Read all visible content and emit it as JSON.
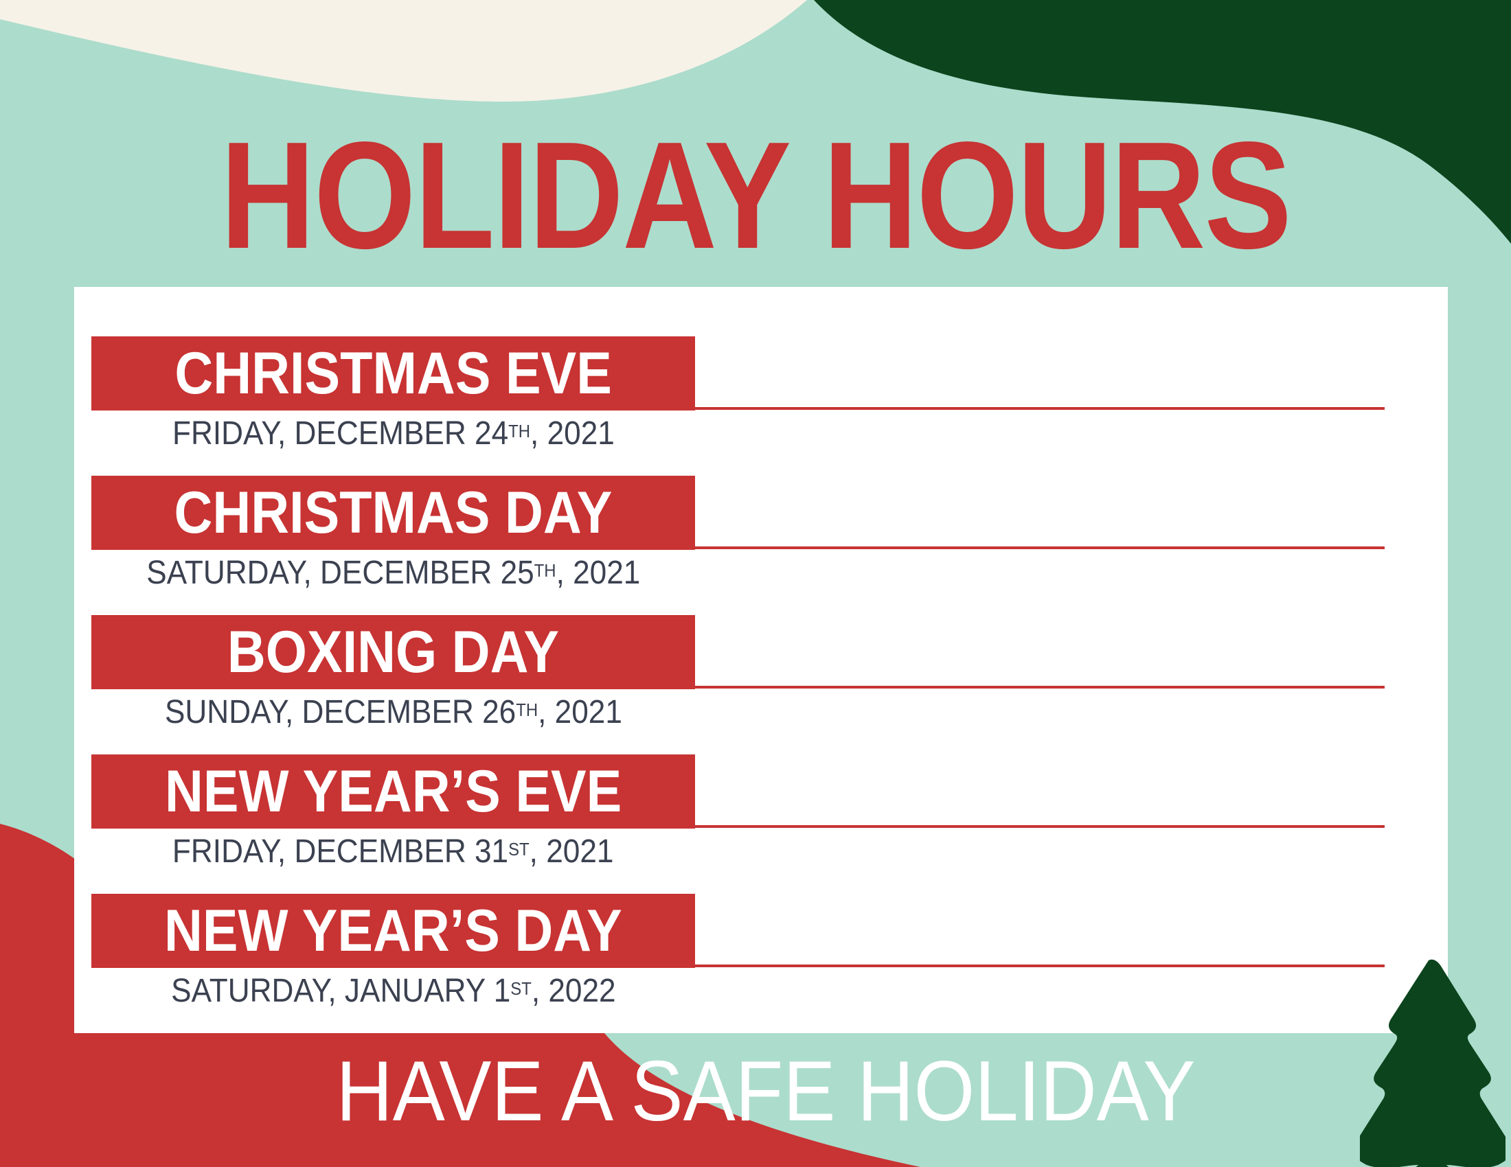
{
  "title": "HOLIDAY HOURS",
  "entries": [
    {
      "name": "CHRISTMAS EVE",
      "date_prefix": "FRIDAY, DECEMBER 24",
      "date_sup": "TH",
      "date_suffix": ", 2021"
    },
    {
      "name": "CHRISTMAS DAY",
      "date_prefix": "SATURDAY, DECEMBER 25",
      "date_sup": "TH",
      "date_suffix": ", 2021"
    },
    {
      "name": "BOXING DAY",
      "date_prefix": "SUNDAY, DECEMBER 26",
      "date_sup": "TH",
      "date_suffix": ", 2021"
    },
    {
      "name": "NEW YEAR’S EVE",
      "date_prefix": "FRIDAY, DECEMBER 31",
      "date_sup": "ST",
      "date_suffix": ", 2021"
    },
    {
      "name": "NEW YEAR’S DAY",
      "date_prefix": "SATURDAY, JANUARY 1",
      "date_sup": "ST",
      "date_suffix": ", 2022"
    }
  ],
  "footer": "HAVE A SAFE HOLIDAY",
  "colors": {
    "red": "#c83333",
    "mint": "#acdccc",
    "dark_green": "#0c441d",
    "cream": "#f6f2e8",
    "text": "#3b4150"
  },
  "icons": {
    "tree": "christmas-tree-icon"
  }
}
